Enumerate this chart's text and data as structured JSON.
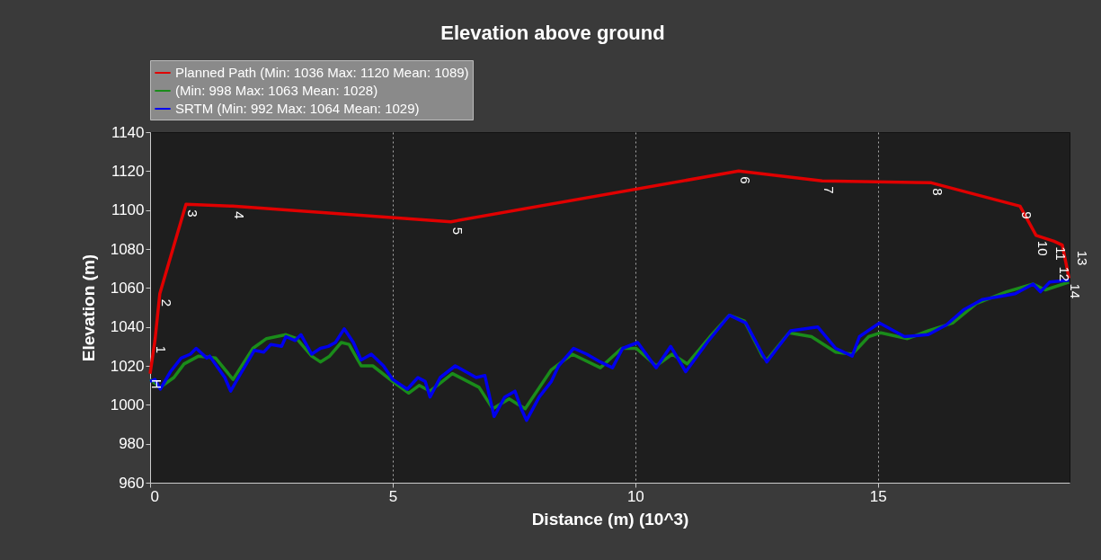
{
  "chart_data": {
    "type": "line",
    "title": "Elevation above ground",
    "xlabel": "Distance (m) (10^3)",
    "ylabel": "Elevation (m)",
    "xlim": [
      0,
      18.95
    ],
    "xticks": [
      0,
      5,
      10,
      15
    ],
    "ylim": [
      960,
      1140
    ],
    "yticks": [
      960,
      980,
      1000,
      1020,
      1040,
      1060,
      1080,
      1100,
      1120,
      1140
    ],
    "grid": "x",
    "legend": "top left",
    "line_style": "solid",
    "marker": "none",
    "series": [
      {
        "name": "Planned Path (Min: 1036 Max: 1120 Mean: 1089)",
        "color": "#e00000",
        "x": [
          0,
          0.1,
          0.2,
          0.74,
          1.7,
          6.2,
          12.13,
          13.85,
          16.1,
          17.93,
          18.26,
          18.63,
          18.8,
          18.94
        ],
        "values": [
          1016,
          1033,
          1057,
          1103,
          1102,
          1094,
          1120,
          1115,
          1114,
          1102,
          1087,
          1084,
          1082,
          1065
        ]
      },
      {
        "name": "(Min: 998 Max: 1063 Mean: 1028)",
        "color": "#1a8c1a",
        "x": [
          0,
          0.21,
          0.49,
          0.7,
          1.0,
          1.35,
          1.71,
          2.12,
          2.4,
          2.8,
          3.02,
          3.33,
          3.51,
          3.7,
          3.94,
          4.1,
          4.35,
          4.59,
          5.0,
          5.33,
          5.55,
          5.77,
          6.23,
          6.78,
          7.06,
          7.4,
          7.73,
          8.27,
          8.7,
          9.28,
          9.72,
          10.02,
          10.43,
          10.76,
          11.07,
          11.54,
          11.94,
          12.25,
          12.62,
          12.71,
          13.17,
          13.63,
          14.13,
          14.47,
          14.81,
          15.06,
          15.61,
          16.04,
          16.54,
          17.03,
          17.65,
          18.2,
          18.45,
          18.94
        ],
        "values": [
          1013,
          1009,
          1014,
          1021,
          1025,
          1024,
          1013,
          1029,
          1034,
          1036,
          1034,
          1025,
          1022,
          1025,
          1032,
          1031,
          1020,
          1020,
          1012,
          1006,
          1010,
          1007,
          1016,
          1009,
          998,
          1003,
          998,
          1018,
          1026,
          1019,
          1029,
          1029,
          1020,
          1026,
          1021,
          1035,
          1046,
          1043,
          1025,
          1023,
          1037,
          1035,
          1027,
          1026,
          1035,
          1037,
          1034,
          1038,
          1042,
          1052,
          1058,
          1062,
          1059,
          1063
        ]
      },
      {
        "name": "SRTM (Min: 992 Max: 1064 Mean: 1029)",
        "color": "#0000ee",
        "x": [
          0,
          0.1,
          0.21,
          0.42,
          0.64,
          0.83,
          0.95,
          1.17,
          1.23,
          1.54,
          1.66,
          1.82,
          2.15,
          2.34,
          2.49,
          2.71,
          2.8,
          2.99,
          3.11,
          3.33,
          3.51,
          3.67,
          3.82,
          4.0,
          4.19,
          4.35,
          4.56,
          4.81,
          5.0,
          5.3,
          5.52,
          5.67,
          5.77,
          5.98,
          6.29,
          6.72,
          6.9,
          7.09,
          7.31,
          7.52,
          7.65,
          7.76,
          8.02,
          8.27,
          8.42,
          8.73,
          9.0,
          9.28,
          9.53,
          9.74,
          10.05,
          10.43,
          10.73,
          11.04,
          11.48,
          11.94,
          12.28,
          12.62,
          12.71,
          13.2,
          13.76,
          14.13,
          14.47,
          14.62,
          15.03,
          15.55,
          16.04,
          16.41,
          16.78,
          17.15,
          17.83,
          18.2,
          18.35,
          18.54,
          18.94
        ],
        "values": [
          1012,
          1013,
          1008,
          1017,
          1024,
          1026,
          1029,
          1024,
          1025,
          1014,
          1007,
          1014,
          1028,
          1027,
          1031,
          1030,
          1035,
          1033,
          1036,
          1026,
          1029,
          1030,
          1032,
          1039,
          1032,
          1023,
          1026,
          1020,
          1013,
          1008,
          1014,
          1012,
          1004,
          1014,
          1020,
          1014,
          1015,
          994,
          1004,
          1007,
          998,
          992,
          1004,
          1012,
          1020,
          1029,
          1026,
          1022,
          1019,
          1029,
          1032,
          1019,
          1030,
          1017,
          1032,
          1046,
          1042,
          1026,
          1022,
          1038,
          1040,
          1029,
          1025,
          1035,
          1042,
          1035,
          1036,
          1041,
          1049,
          1054,
          1057,
          1062,
          1058,
          1063,
          1064
        ]
      }
    ],
    "annotations": [
      {
        "text": "H",
        "x": 0,
        "y": 1016
      },
      {
        "text": "1",
        "x": 0.1,
        "y": 1033
      },
      {
        "text": "2",
        "x": 0.2,
        "y": 1057
      },
      {
        "text": "3",
        "x": 0.74,
        "y": 1103
      },
      {
        "text": "4",
        "x": 1.7,
        "y": 1102
      },
      {
        "text": "5",
        "x": 6.2,
        "y": 1094
      },
      {
        "text": "6",
        "x": 12.13,
        "y": 1120
      },
      {
        "text": "7",
        "x": 13.85,
        "y": 1115
      },
      {
        "text": "8",
        "x": 16.1,
        "y": 1114
      },
      {
        "text": "9",
        "x": 17.93,
        "y": 1102
      },
      {
        "text": "10",
        "x": 18.26,
        "y": 1087
      },
      {
        "text": "11",
        "x": 18.63,
        "y": 1084
      },
      {
        "text": "12",
        "x": 18.7,
        "y": 1083
      },
      {
        "text": "13",
        "x": 18.8,
        "y": 1082
      },
      {
        "text": "14",
        "x": 18.94,
        "y": 1065
      }
    ]
  }
}
